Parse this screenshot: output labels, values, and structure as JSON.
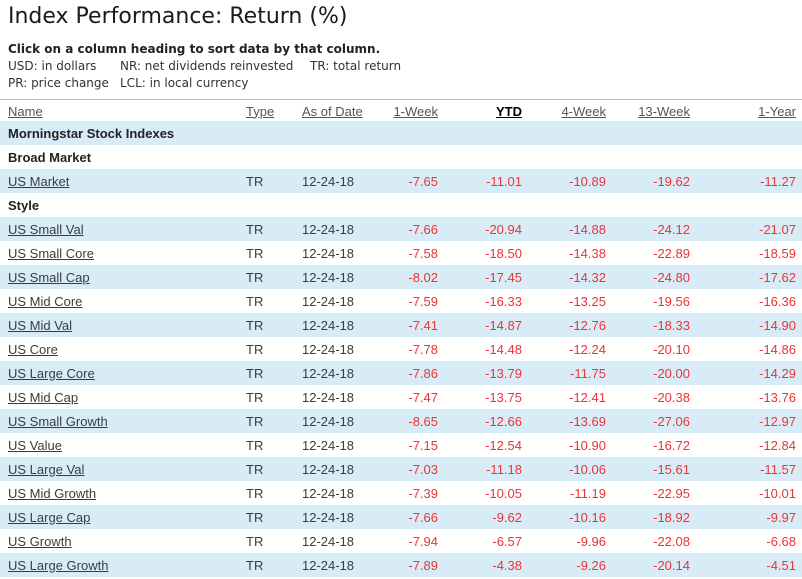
{
  "page_title": "Index Performance: Return (%)",
  "sort_instruction": "Click on a column heading to sort data by that column.",
  "legend": {
    "row1": [
      "USD: in dollars",
      "NR: net dividends reinvested",
      "TR: total return"
    ],
    "row2": [
      "PR: price change",
      "LCL: in local currency"
    ]
  },
  "colors": {
    "row_highlight": "#d8ecf8",
    "negative_value": "#ee3333",
    "header_link": "#555555",
    "name_link": "#3c3c3c"
  },
  "table": {
    "sort_column": "YTD",
    "columns": [
      {
        "key": "name",
        "label": "Name",
        "align": "left"
      },
      {
        "key": "type",
        "label": "Type",
        "align": "left"
      },
      {
        "key": "as_of_date",
        "label": "As of Date",
        "align": "left"
      },
      {
        "key": "week_1",
        "label": "1-Week",
        "align": "right"
      },
      {
        "key": "ytd",
        "label": "YTD",
        "align": "right"
      },
      {
        "key": "week_4",
        "label": "4-Week",
        "align": "right"
      },
      {
        "key": "week_13",
        "label": "13-Week",
        "align": "right"
      },
      {
        "key": "year_1",
        "label": "1-Year",
        "align": "right"
      }
    ],
    "group_header": "Morningstar Stock Indexes",
    "sections": [
      {
        "heading": "Broad Market",
        "rows": [
          {
            "name": "US Market",
            "type": "TR",
            "as_of_date": "12-24-18",
            "values": [
              "-7.65",
              "-11.01",
              "-10.89",
              "-19.62",
              "-11.27"
            ]
          }
        ]
      },
      {
        "heading": "Style",
        "rows": [
          {
            "name": "US Small Val",
            "type": "TR",
            "as_of_date": "12-24-18",
            "values": [
              "-7.66",
              "-20.94",
              "-14.88",
              "-24.12",
              "-21.07"
            ]
          },
          {
            "name": "US Small Core",
            "type": "TR",
            "as_of_date": "12-24-18",
            "values": [
              "-7.58",
              "-18.50",
              "-14.38",
              "-22.89",
              "-18.59"
            ]
          },
          {
            "name": "US Small Cap",
            "type": "TR",
            "as_of_date": "12-24-18",
            "values": [
              "-8.02",
              "-17.45",
              "-14.32",
              "-24.80",
              "-17.62"
            ]
          },
          {
            "name": "US Mid Core",
            "type": "TR",
            "as_of_date": "12-24-18",
            "values": [
              "-7.59",
              "-16.33",
              "-13.25",
              "-19.56",
              "-16.36"
            ]
          },
          {
            "name": "US Mid Val",
            "type": "TR",
            "as_of_date": "12-24-18",
            "values": [
              "-7.41",
              "-14.87",
              "-12.76",
              "-18.33",
              "-14.90"
            ]
          },
          {
            "name": "US Core",
            "type": "TR",
            "as_of_date": "12-24-18",
            "values": [
              "-7.78",
              "-14.48",
              "-12.24",
              "-20.10",
              "-14.86"
            ]
          },
          {
            "name": "US Large Core",
            "type": "TR",
            "as_of_date": "12-24-18",
            "values": [
              "-7.86",
              "-13.79",
              "-11.75",
              "-20.00",
              "-14.29"
            ]
          },
          {
            "name": "US Mid Cap",
            "type": "TR",
            "as_of_date": "12-24-18",
            "values": [
              "-7.47",
              "-13.75",
              "-12.41",
              "-20.38",
              "-13.76"
            ]
          },
          {
            "name": "US Small Growth",
            "type": "TR",
            "as_of_date": "12-24-18",
            "values": [
              "-8.65",
              "-12.66",
              "-13.69",
              "-27.06",
              "-12.97"
            ]
          },
          {
            "name": "US Value",
            "type": "TR",
            "as_of_date": "12-24-18",
            "values": [
              "-7.15",
              "-12.54",
              "-10.90",
              "-16.72",
              "-12.84"
            ]
          },
          {
            "name": "US Large Val",
            "type": "TR",
            "as_of_date": "12-24-18",
            "values": [
              "-7.03",
              "-11.18",
              "-10.06",
              "-15.61",
              "-11.57"
            ]
          },
          {
            "name": "US Mid Growth",
            "type": "TR",
            "as_of_date": "12-24-18",
            "values": [
              "-7.39",
              "-10.05",
              "-11.19",
              "-22.95",
              "-10.01"
            ]
          },
          {
            "name": "US Large Cap",
            "type": "TR",
            "as_of_date": "12-24-18",
            "values": [
              "-7.66",
              "-9.62",
              "-10.16",
              "-18.92",
              "-9.97"
            ]
          },
          {
            "name": "US Growth",
            "type": "TR",
            "as_of_date": "12-24-18",
            "values": [
              "-7.94",
              "-6.57",
              "-9.96",
              "-22.08",
              "-6.68"
            ]
          },
          {
            "name": "US Large Growth",
            "type": "TR",
            "as_of_date": "12-24-18",
            "values": [
              "-7.89",
              "-4.38",
              "-9.26",
              "-20.14",
              "-4.51"
            ]
          }
        ]
      }
    ]
  }
}
